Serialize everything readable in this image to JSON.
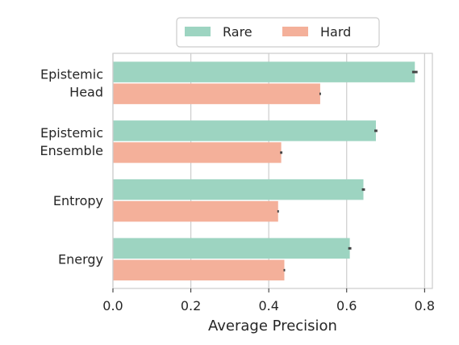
{
  "chart_data": {
    "type": "bar",
    "orientation": "horizontal",
    "categories": [
      "Epistemic\nHead",
      "Epistemic\nEnsemble",
      "Entropy",
      "Energy"
    ],
    "series": [
      {
        "name": "Rare",
        "color": "#9dd4c1",
        "values": [
          0.775,
          0.675,
          0.643,
          0.608
        ],
        "errors": [
          0.007,
          0.004,
          0.004,
          0.004
        ]
      },
      {
        "name": "Hard",
        "color": "#f4b09a",
        "values": [
          0.532,
          0.432,
          0.424,
          0.44
        ],
        "errors": [
          0.002,
          0.003,
          0.002,
          0.002
        ]
      }
    ],
    "xlabel": "Average Precision",
    "ylabel": "",
    "xlim": [
      0.0,
      0.82
    ],
    "xticks": [
      "0.0",
      "0.2",
      "0.4",
      "0.6",
      "0.8"
    ],
    "grid": "vertical",
    "legend_position": "top-center"
  }
}
